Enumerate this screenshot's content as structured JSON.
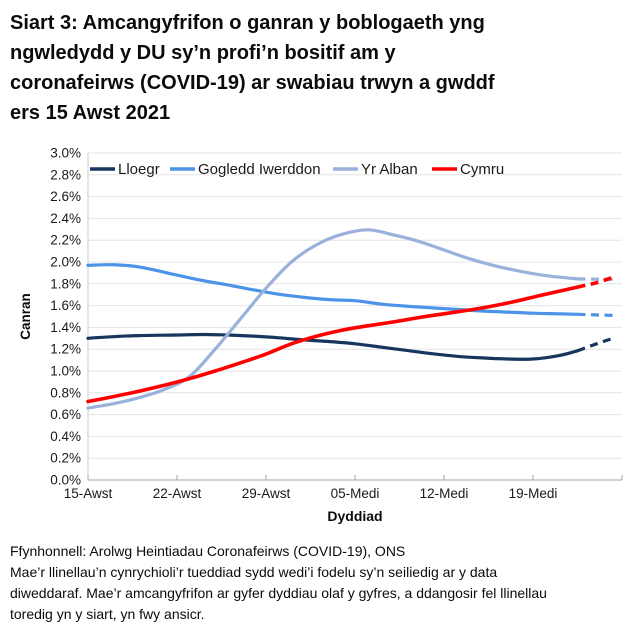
{
  "page": {
    "title": "Siart 3: Amcangyfrifon o ganran y boblogaeth yng\nngwledydd y DU sy’n profi’n bositif am y\ncoronafeirws (COVID-19) ar swabiau trwyn a gwddf\ners 15 Awst 2021",
    "footer_source": "Ffynhonnell: Arolwg Heintiadau Coronafeirws (COVID-19), ONS",
    "footer_note": "Mae’r llinellau’n cynrychioli’r tueddiad sydd wedi’i fodelu sy’n seiliedig ar y data\ndiweddaraf. Mae’r amcangyfrifon ar gyfer dyddiau olaf y gyfres, a ddangosir fel llinellau\ntoredig yn y siart, yn fwy ansicr."
  },
  "chart_data": {
    "type": "line",
    "title": "Siart 3: Amcangyfrifon o ganran y boblogaeth yng ngwledydd y DU sy’n profi’n bositif am y coronafeirws (COVID-19) ar swabiau trwyn a gwddf ers 15 Awst 2021",
    "xlabel": "Dyddiad",
    "ylabel": "Canran",
    "ylim": [
      0,
      3.0
    ],
    "ytick_step": 0.2,
    "ytick_suffix": "%",
    "xlim_days": [
      0,
      42
    ],
    "x_day_zero": "15 Awst 2021",
    "grid": true,
    "legend_position": "top-inside",
    "dashed_meaning": "estimates for the final days of the series are shown as dashed (more uncertain)",
    "xticks": [
      {
        "day": 0,
        "label": "15-Awst"
      },
      {
        "day": 7,
        "label": "22-Awst"
      },
      {
        "day": 14,
        "label": "29-Awst"
      },
      {
        "day": 21,
        "label": "05-Medi"
      },
      {
        "day": 28,
        "label": "12-Medi"
      },
      {
        "day": 35,
        "label": "19-Medi"
      },
      {
        "day": 42,
        "label": ""
      }
    ],
    "series": [
      {
        "name": "Lloegr",
        "color": "#17365D",
        "width": 3.2,
        "solid": [
          [
            0,
            1.3
          ],
          [
            2,
            1.315
          ],
          [
            4,
            1.325
          ],
          [
            7,
            1.33
          ],
          [
            9,
            1.335
          ],
          [
            11,
            1.33
          ],
          [
            13,
            1.32
          ],
          [
            15,
            1.305
          ],
          [
            17,
            1.285
          ],
          [
            19,
            1.27
          ],
          [
            21,
            1.25
          ],
          [
            23,
            1.22
          ],
          [
            25,
            1.19
          ],
          [
            27,
            1.16
          ],
          [
            29,
            1.135
          ],
          [
            31,
            1.12
          ],
          [
            33,
            1.11
          ],
          [
            35,
            1.11
          ],
          [
            37,
            1.14
          ],
          [
            38.5,
            1.185
          ]
        ],
        "dashed": [
          [
            38.5,
            1.185
          ],
          [
            40,
            1.25
          ],
          [
            41.3,
            1.3
          ]
        ]
      },
      {
        "name": "Gogledd Iwerddon",
        "color": "#4D93E8",
        "width": 3.2,
        "solid": [
          [
            0,
            1.97
          ],
          [
            2,
            1.975
          ],
          [
            4,
            1.955
          ],
          [
            7,
            1.88
          ],
          [
            9,
            1.83
          ],
          [
            11,
            1.79
          ],
          [
            13,
            1.745
          ],
          [
            15,
            1.705
          ],
          [
            17,
            1.675
          ],
          [
            19,
            1.655
          ],
          [
            21,
            1.645
          ],
          [
            23,
            1.615
          ],
          [
            25,
            1.595
          ],
          [
            27,
            1.58
          ],
          [
            29,
            1.565
          ],
          [
            31,
            1.55
          ],
          [
            33,
            1.54
          ],
          [
            35,
            1.53
          ],
          [
            37,
            1.525
          ],
          [
            38.5,
            1.52
          ]
        ],
        "dashed": [
          [
            38.5,
            1.52
          ],
          [
            41.3,
            1.51
          ]
        ]
      },
      {
        "name": "Yr Alban",
        "color": "#9AB1DB",
        "width": 3.2,
        "solid": [
          [
            0,
            0.66
          ],
          [
            2,
            0.7
          ],
          [
            4,
            0.755
          ],
          [
            6,
            0.83
          ],
          [
            8,
            0.95
          ],
          [
            10,
            1.2
          ],
          [
            12,
            1.48
          ],
          [
            14,
            1.76
          ],
          [
            16,
            2.0
          ],
          [
            18,
            2.16
          ],
          [
            20,
            2.255
          ],
          [
            22,
            2.295
          ],
          [
            24,
            2.25
          ],
          [
            26,
            2.19
          ],
          [
            28,
            2.11
          ],
          [
            30,
            2.03
          ],
          [
            32,
            1.965
          ],
          [
            34,
            1.915
          ],
          [
            36,
            1.875
          ],
          [
            38.5,
            1.845
          ]
        ],
        "dashed": [
          [
            38.5,
            1.845
          ],
          [
            41.3,
            1.84
          ]
        ]
      },
      {
        "name": "Cymru",
        "color": "#FF0000",
        "width": 3.6,
        "solid": [
          [
            0,
            0.72
          ],
          [
            2,
            0.765
          ],
          [
            4,
            0.815
          ],
          [
            6,
            0.87
          ],
          [
            8,
            0.93
          ],
          [
            10,
            1.0
          ],
          [
            12,
            1.075
          ],
          [
            14,
            1.155
          ],
          [
            16,
            1.25
          ],
          [
            18,
            1.32
          ],
          [
            20,
            1.375
          ],
          [
            22,
            1.415
          ],
          [
            24,
            1.45
          ],
          [
            26,
            1.49
          ],
          [
            28,
            1.525
          ],
          [
            30,
            1.56
          ],
          [
            32,
            1.6
          ],
          [
            34,
            1.65
          ],
          [
            36,
            1.705
          ],
          [
            38.5,
            1.77
          ]
        ],
        "dashed": [
          [
            38.5,
            1.77
          ],
          [
            40,
            1.81
          ],
          [
            41.3,
            1.86
          ]
        ]
      }
    ],
    "style_colors": {
      "gridline": "#e4e4e4",
      "axis_line": "#a6a6a6",
      "left_axis_line": "#cccccc",
      "tick_label": "#1a1a1a",
      "legend_text": "#1a1a1a"
    }
  }
}
